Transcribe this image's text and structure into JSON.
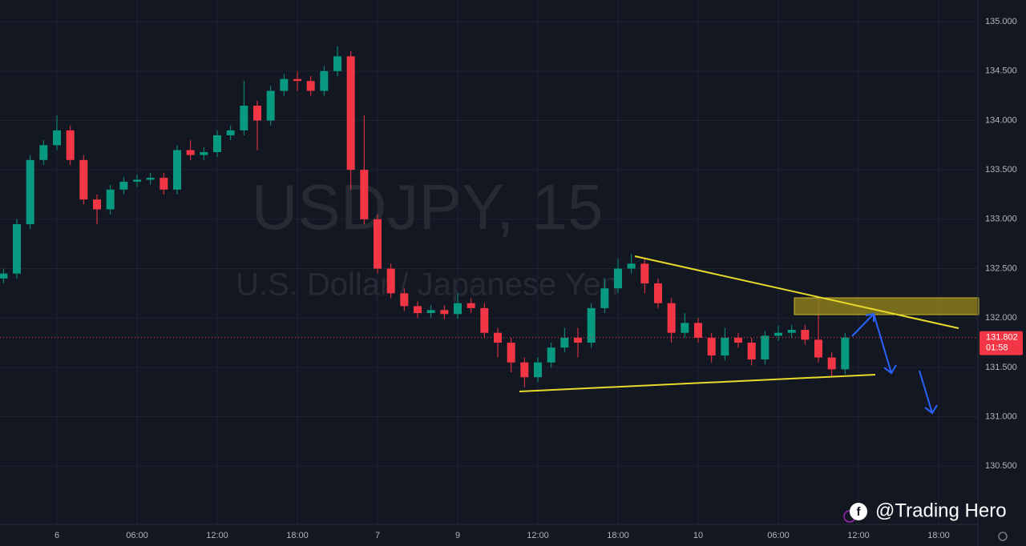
{
  "chart_data": {
    "type": "candlestick",
    "title": "USDJPY, 15",
    "subtitle": "U.S. Dollar / Japanese Yen",
    "annotation": "@Trading Hero",
    "x": [
      -4,
      -3,
      -2,
      -1,
      0,
      1,
      2,
      3,
      4,
      5,
      6,
      7,
      8,
      9,
      10,
      11,
      12,
      13,
      14,
      15,
      16,
      17,
      18,
      19,
      20,
      21,
      22,
      23,
      24,
      25,
      26,
      27,
      28,
      29,
      30,
      31,
      32,
      33,
      34,
      35,
      36,
      37,
      38,
      39,
      40,
      41,
      42,
      43,
      44,
      45,
      46,
      47,
      48,
      49,
      50,
      51,
      52,
      53,
      54,
      55,
      56,
      57,
      58,
      59
    ],
    "open": [
      132.4,
      132.45,
      132.95,
      133.6,
      133.75,
      133.9,
      133.6,
      133.2,
      133.1,
      133.3,
      133.38,
      133.4,
      133.42,
      133.3,
      133.7,
      133.65,
      133.68,
      133.85,
      133.9,
      134.15,
      134.0,
      134.3,
      134.42,
      134.4,
      134.3,
      134.5,
      134.65,
      133.5,
      133.0,
      132.5,
      132.25,
      132.12,
      132.05,
      132.08,
      132.04,
      132.15,
      132.1,
      131.85,
      131.75,
      131.55,
      131.4,
      131.55,
      131.7,
      131.8,
      131.75,
      132.1,
      132.3,
      132.5,
      132.55,
      132.35,
      132.15,
      131.85,
      131.95,
      131.8,
      131.62,
      131.8,
      131.75,
      131.58,
      131.82,
      131.85,
      131.88,
      131.78,
      131.6,
      131.48
    ],
    "high": [
      132.5,
      133.0,
      133.65,
      133.8,
      134.05,
      133.95,
      133.65,
      133.25,
      133.35,
      133.43,
      133.45,
      133.47,
      133.47,
      133.75,
      133.8,
      133.73,
      133.9,
      133.95,
      134.4,
      134.2,
      134.35,
      134.47,
      134.5,
      134.45,
      134.55,
      134.75,
      134.7,
      134.05,
      133.05,
      132.55,
      132.3,
      132.17,
      132.13,
      132.13,
      132.25,
      132.2,
      132.15,
      131.9,
      131.8,
      131.6,
      131.6,
      131.75,
      131.9,
      131.9,
      132.15,
      132.4,
      132.6,
      132.65,
      132.6,
      132.4,
      132.2,
      132.05,
      132.0,
      131.85,
      131.9,
      131.85,
      131.8,
      131.87,
      131.92,
      131.93,
      131.93,
      132.2,
      131.65,
      131.85
    ],
    "low": [
      132.35,
      132.4,
      132.9,
      133.55,
      133.7,
      133.55,
      133.15,
      132.95,
      133.05,
      133.25,
      133.33,
      133.35,
      133.25,
      133.25,
      133.6,
      133.6,
      133.63,
      133.8,
      133.85,
      133.7,
      133.95,
      134.25,
      134.3,
      134.25,
      134.25,
      134.45,
      133.3,
      132.95,
      132.45,
      132.2,
      132.07,
      132.0,
      132.0,
      131.99,
      131.99,
      132.05,
      131.8,
      131.6,
      131.45,
      131.3,
      131.35,
      131.5,
      131.65,
      131.6,
      131.7,
      132.05,
      132.25,
      132.45,
      132.25,
      132.1,
      131.75,
      131.8,
      131.75,
      131.55,
      131.57,
      131.7,
      131.52,
      131.53,
      131.77,
      131.8,
      131.73,
      131.55,
      131.4,
      131.43
    ],
    "close": [
      132.45,
      132.95,
      133.6,
      133.75,
      133.9,
      133.6,
      133.2,
      133.1,
      133.3,
      133.38,
      133.4,
      133.42,
      133.3,
      133.7,
      133.65,
      133.68,
      133.85,
      133.9,
      134.15,
      134.0,
      134.3,
      134.42,
      134.4,
      134.3,
      134.5,
      134.65,
      133.5,
      133.0,
      132.5,
      132.25,
      132.12,
      132.05,
      132.08,
      132.04,
      132.15,
      132.1,
      131.85,
      131.75,
      131.55,
      131.4,
      131.55,
      131.7,
      131.8,
      131.75,
      132.1,
      132.3,
      132.5,
      132.55,
      132.35,
      132.15,
      131.85,
      131.95,
      131.8,
      131.62,
      131.8,
      131.75,
      131.58,
      131.82,
      131.85,
      131.88,
      131.78,
      131.6,
      131.48,
      131.802
    ],
    "up_color": "#089981",
    "down_color": "#f23645",
    "xlim": [
      -4.26,
      68.94
    ],
    "xticks": [
      {
        "value": 0,
        "label": "6"
      },
      {
        "value": 6,
        "label": "06:00"
      },
      {
        "value": 12,
        "label": "12:00"
      },
      {
        "value": 18,
        "label": "18:00"
      },
      {
        "value": 24,
        "label": "7"
      },
      {
        "value": 30,
        "label": "9"
      },
      {
        "value": 36,
        "label": "12:00"
      },
      {
        "value": 42,
        "label": "18:00"
      },
      {
        "value": 48,
        "label": "10"
      },
      {
        "value": 54,
        "label": "06:00"
      },
      {
        "value": 60,
        "label": "12:00"
      },
      {
        "value": 66,
        "label": "18:00"
      }
    ],
    "ylim": [
      129.91,
      135.22
    ],
    "yticks": [
      {
        "value": 135,
        "label": "135.000"
      },
      {
        "value": 134.5,
        "label": "134.500"
      },
      {
        "value": 134,
        "label": "134.000"
      },
      {
        "value": 133.5,
        "label": "133.500"
      },
      {
        "value": 133,
        "label": "133.000"
      },
      {
        "value": 132.5,
        "label": "132.500"
      },
      {
        "value": 132,
        "label": "132.000"
      },
      {
        "value": 131.5,
        "label": "131.500"
      },
      {
        "value": 131,
        "label": "131.000"
      },
      {
        "value": 130.5,
        "label": "130.500"
      }
    ],
    "grid": true,
    "last_price": {
      "value": 131.802,
      "label": "131.802"
    },
    "countdown": "01:58"
  }
}
